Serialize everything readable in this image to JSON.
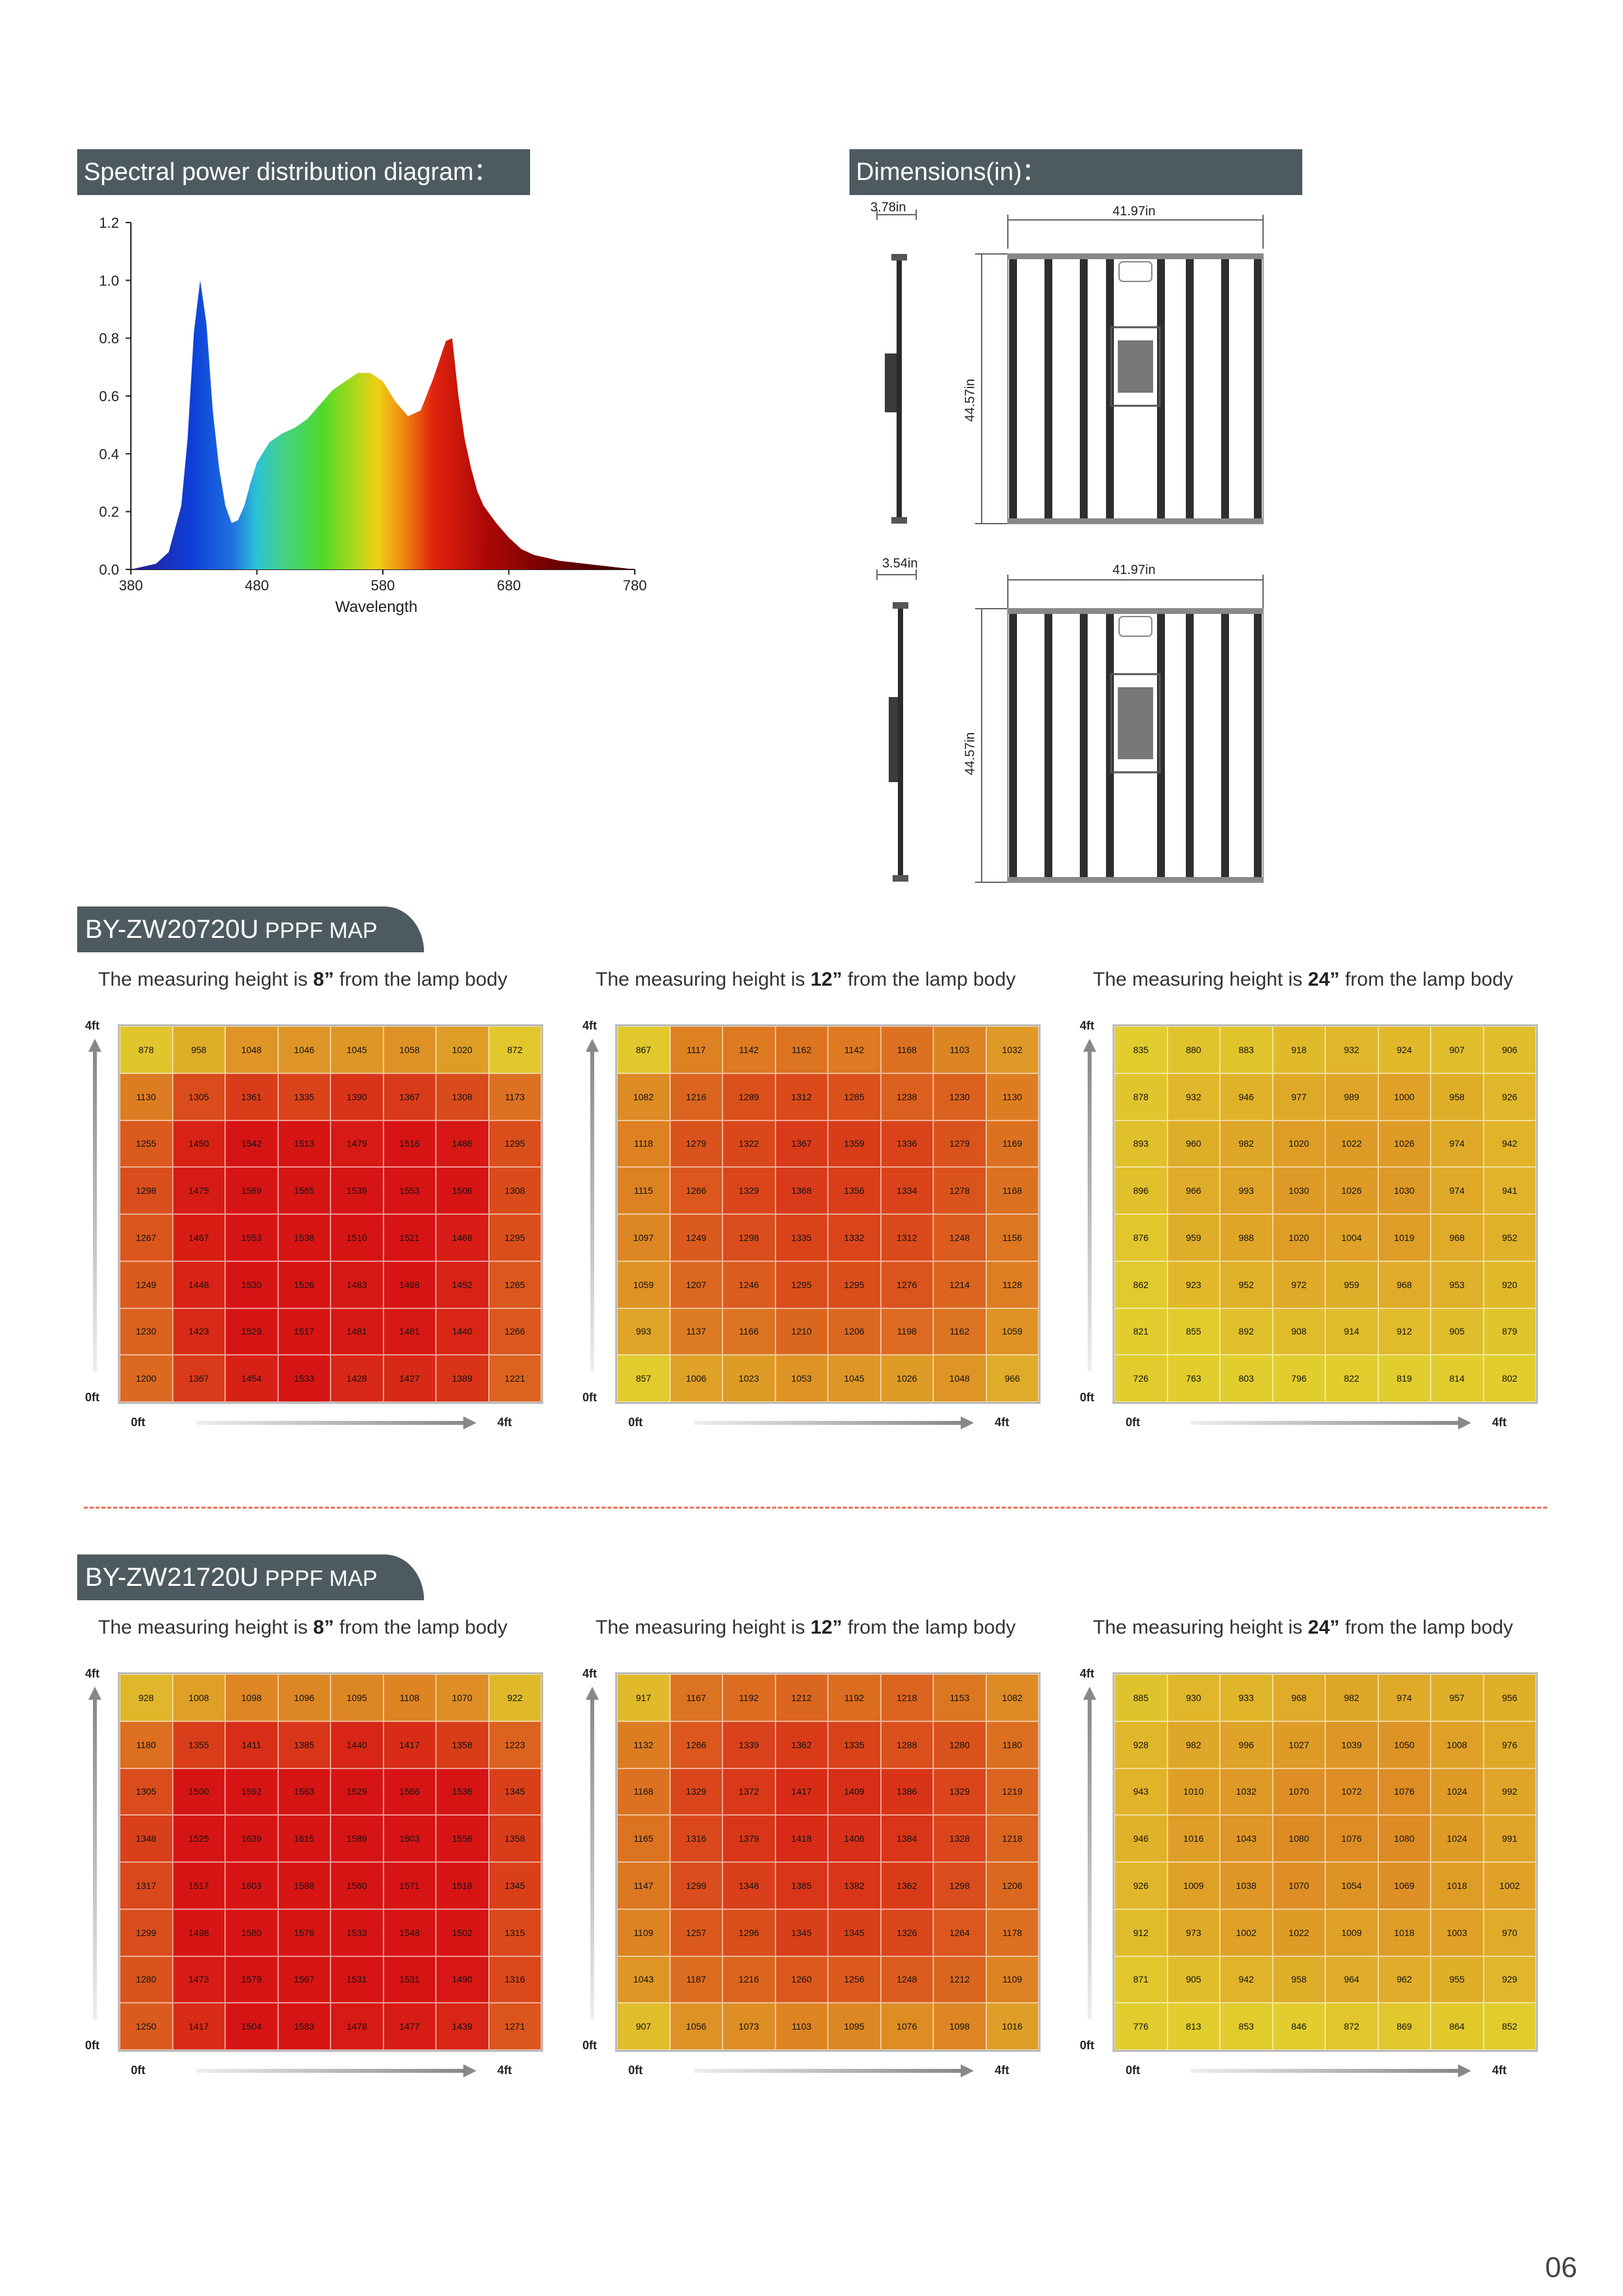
{
  "spd": {
    "title": "Spectral power distribution diagram：",
    "chart_data": {
      "type": "area",
      "title": "",
      "xlabel": "Wavelength",
      "ylabel": "",
      "xlim": [
        380,
        780
      ],
      "ylim": [
        0,
        1.2
      ],
      "x_ticks": [
        "380",
        "480",
        "580",
        "680",
        "780"
      ],
      "y_ticks": [
        "0.0",
        "0.2",
        "0.4",
        "0.6",
        "0.8",
        "1.0",
        "1.2"
      ],
      "x": [
        380,
        390,
        400,
        410,
        420,
        425,
        430,
        435,
        440,
        445,
        450,
        455,
        460,
        465,
        470,
        475,
        480,
        490,
        500,
        510,
        520,
        530,
        540,
        550,
        560,
        570,
        580,
        590,
        600,
        610,
        620,
        630,
        635,
        640,
        645,
        650,
        655,
        660,
        670,
        680,
        690,
        700,
        710,
        720,
        740,
        760,
        780
      ],
      "y": [
        0,
        0.01,
        0.02,
        0.06,
        0.22,
        0.45,
        0.82,
        1.0,
        0.85,
        0.55,
        0.35,
        0.22,
        0.16,
        0.17,
        0.22,
        0.3,
        0.37,
        0.44,
        0.47,
        0.49,
        0.52,
        0.57,
        0.62,
        0.65,
        0.68,
        0.68,
        0.65,
        0.58,
        0.53,
        0.55,
        0.66,
        0.79,
        0.8,
        0.6,
        0.45,
        0.35,
        0.27,
        0.22,
        0.16,
        0.11,
        0.07,
        0.05,
        0.04,
        0.03,
        0.02,
        0.01,
        0
      ]
    }
  },
  "dimensions": {
    "title": "Dimensions(in)：",
    "top": {
      "depth": "3.78in",
      "width": "41.97in",
      "height": "44.57in"
    },
    "bottom": {
      "depth": "3.54in",
      "width": "41.97in",
      "height": "44.57in"
    }
  },
  "maps": [
    {
      "model": "BY-ZW20720U",
      "suffix": " PPPF MAP",
      "panels": [
        {
          "prefix": "The measuring height is ",
          "height": "8”",
          "suffix": " from the lamp body",
          "rows": [
            [
              878,
              958,
              1048,
              1046,
              1045,
              1058,
              1020,
              872
            ],
            [
              1130,
              1305,
              1361,
              1335,
              1390,
              1367,
              1308,
              1173
            ],
            [
              1255,
              1450,
              1542,
              1513,
              1479,
              1516,
              1486,
              1295
            ],
            [
              1298,
              1475,
              1589,
              1565,
              1539,
              1553,
              1506,
              1308
            ],
            [
              1267,
              1467,
              1553,
              1538,
              1510,
              1521,
              1468,
              1295
            ],
            [
              1249,
              1448,
              1530,
              1526,
              1483,
              1498,
              1452,
              1265
            ],
            [
              1230,
              1423,
              1529,
              1517,
              1481,
              1481,
              1440,
              1266
            ],
            [
              1200,
              1367,
              1454,
              1533,
              1428,
              1427,
              1389,
              1221
            ]
          ]
        },
        {
          "prefix": "The measuring height is ",
          "height": "12”",
          "suffix": " from the lamp body",
          "rows": [
            [
              867,
              1117,
              1142,
              1162,
              1142,
              1168,
              1103,
              1032
            ],
            [
              1082,
              1216,
              1289,
              1312,
              1285,
              1238,
              1230,
              1130
            ],
            [
              1118,
              1279,
              1322,
              1367,
              1359,
              1336,
              1279,
              1169
            ],
            [
              1115,
              1266,
              1329,
              1368,
              1356,
              1334,
              1278,
              1168
            ],
            [
              1097,
              1249,
              1298,
              1335,
              1332,
              1312,
              1248,
              1156
            ],
            [
              1059,
              1207,
              1246,
              1295,
              1295,
              1276,
              1214,
              1128
            ],
            [
              993,
              1137,
              1166,
              1210,
              1206,
              1198,
              1162,
              1059
            ],
            [
              857,
              1006,
              1023,
              1053,
              1045,
              1026,
              1048,
              966
            ]
          ]
        },
        {
          "prefix": "The measuring height is ",
          "height": "24”",
          "suffix": " from the lamp body",
          "rows": [
            [
              835,
              880,
              883,
              918,
              932,
              924,
              907,
              906
            ],
            [
              878,
              932,
              946,
              977,
              989,
              1000,
              958,
              926
            ],
            [
              893,
              960,
              982,
              1020,
              1022,
              1026,
              974,
              942
            ],
            [
              896,
              966,
              993,
              1030,
              1026,
              1030,
              974,
              941
            ],
            [
              876,
              959,
              988,
              1020,
              1004,
              1019,
              968,
              952
            ],
            [
              862,
              923,
              952,
              972,
              959,
              968,
              953,
              920
            ],
            [
              821,
              855,
              892,
              908,
              914,
              912,
              905,
              879
            ],
            [
              726,
              763,
              803,
              796,
              822,
              819,
              814,
              802
            ]
          ]
        }
      ]
    },
    {
      "model": "BY-ZW21720U",
      "suffix": " PPPF MAP",
      "panels": [
        {
          "prefix": "The measuring height is ",
          "height": "8”",
          "suffix": " from the lamp body",
          "rows": [
            [
              928,
              1008,
              1098,
              1096,
              1095,
              1108,
              1070,
              922
            ],
            [
              1180,
              1355,
              1411,
              1385,
              1440,
              1417,
              1358,
              1223
            ],
            [
              1305,
              1500,
              1592,
              1563,
              1529,
              1566,
              1536,
              1345
            ],
            [
              1348,
              1525,
              1639,
              1615,
              1589,
              1603,
              1556,
              1358
            ],
            [
              1317,
              1517,
              1603,
              1588,
              1560,
              1571,
              1518,
              1345
            ],
            [
              1299,
              1498,
              1580,
              1576,
              1533,
              1548,
              1502,
              1315
            ],
            [
              1280,
              1473,
              1579,
              1567,
              1531,
              1531,
              1490,
              1316
            ],
            [
              1250,
              1417,
              1504,
              1583,
              1478,
              1477,
              1439,
              1271
            ]
          ]
        },
        {
          "prefix": "The measuring height is ",
          "height": "12”",
          "suffix": " from the lamp body",
          "rows": [
            [
              917,
              1167,
              1192,
              1212,
              1192,
              1218,
              1153,
              1082
            ],
            [
              1132,
              1266,
              1339,
              1362,
              1335,
              1288,
              1280,
              1180
            ],
            [
              1168,
              1329,
              1372,
              1417,
              1409,
              1386,
              1329,
              1219
            ],
            [
              1165,
              1316,
              1379,
              1418,
              1406,
              1384,
              1328,
              1218
            ],
            [
              1147,
              1299,
              1348,
              1385,
              1382,
              1362,
              1298,
              1206
            ],
            [
              1109,
              1257,
              1296,
              1345,
              1345,
              1326,
              1264,
              1178
            ],
            [
              1043,
              1187,
              1216,
              1260,
              1256,
              1248,
              1212,
              1109
            ],
            [
              907,
              1056,
              1073,
              1103,
              1095,
              1076,
              1098,
              1016
            ]
          ]
        },
        {
          "prefix": "The measuring height is ",
          "height": "24”",
          "suffix": " from the lamp body",
          "rows": [
            [
              885,
              930,
              933,
              968,
              982,
              974,
              957,
              956
            ],
            [
              928,
              982,
              996,
              1027,
              1039,
              1050,
              1008,
              976
            ],
            [
              943,
              1010,
              1032,
              1070,
              1072,
              1076,
              1024,
              992
            ],
            [
              946,
              1016,
              1043,
              1080,
              1076,
              1080,
              1024,
              991
            ],
            [
              926,
              1009,
              1038,
              1070,
              1054,
              1069,
              1018,
              1002
            ],
            [
              912,
              973,
              1002,
              1022,
              1009,
              1018,
              1003,
              970
            ],
            [
              871,
              905,
              942,
              958,
              964,
              962,
              955,
              929
            ],
            [
              776,
              813,
              853,
              846,
              872,
              869,
              864,
              852
            ]
          ]
        }
      ]
    }
  ],
  "axis": {
    "top": "4ft",
    "origin": "0ft",
    "right": "4ft"
  },
  "page_number": "06"
}
